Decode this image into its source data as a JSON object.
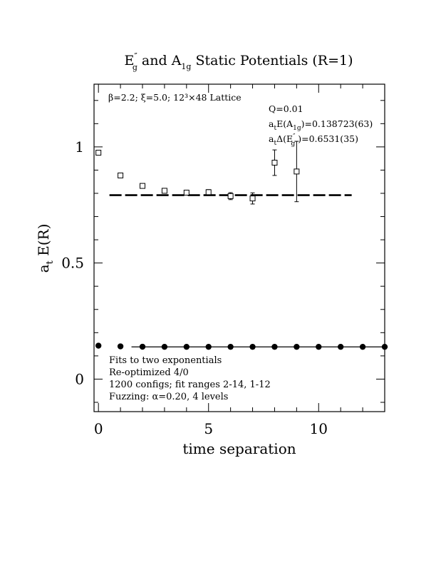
{
  "chart_data": {
    "type": "scatter",
    "title": {
      "main": "E",
      "main_sup": "″",
      "main_sub": "g",
      "mid": "  and A",
      "mid_sub": "1g",
      "rest": " Static Potentials (R=1)"
    },
    "xlabel": "time separation",
    "ylabel": {
      "prefix": "a",
      "prefix_sub": "t",
      "rest": " E(R)"
    },
    "xlim": [
      -0.2,
      13.0
    ],
    "ylim": [
      -0.14,
      1.27
    ],
    "xticks": [
      {
        "value": 0,
        "label": "0"
      },
      {
        "value": 5,
        "label": "5"
      },
      {
        "value": 10,
        "label": "10"
      }
    ],
    "yticks": [
      {
        "value": 0,
        "label": "0"
      },
      {
        "value": 0.5,
        "label": "0.5"
      },
      {
        "value": 1,
        "label": "1"
      }
    ],
    "x_minor_step": 1,
    "y_minor_step": 0.1,
    "grid": false,
    "series": [
      {
        "marker": "open-square",
        "points": [
          {
            "x": 0,
            "y": 0.975,
            "err": 0.006
          },
          {
            "x": 1,
            "y": 0.877,
            "err": 0.006
          },
          {
            "x": 2,
            "y": 0.832,
            "err": 0.006
          },
          {
            "x": 3,
            "y": 0.811,
            "err": 0.008
          },
          {
            "x": 4,
            "y": 0.803,
            "err": 0.009
          },
          {
            "x": 5,
            "y": 0.805,
            "err": 0.011
          },
          {
            "x": 6,
            "y": 0.788,
            "err": 0.015
          },
          {
            "x": 7,
            "y": 0.778,
            "err": 0.024
          },
          {
            "x": 8,
            "y": 0.932,
            "err": 0.055
          },
          {
            "x": 9,
            "y": 0.894,
            "err": 0.13
          }
        ]
      },
      {
        "marker": "filled-circle",
        "points": [
          {
            "x": 0,
            "y": 0.144,
            "err": 0.002
          },
          {
            "x": 1,
            "y": 0.141,
            "err": 0.002
          },
          {
            "x": 2,
            "y": 0.1395,
            "err": 0.002
          },
          {
            "x": 3,
            "y": 0.139,
            "err": 0.002
          },
          {
            "x": 4,
            "y": 0.139,
            "err": 0.002
          },
          {
            "x": 5,
            "y": 0.139,
            "err": 0.002
          },
          {
            "x": 6,
            "y": 0.139,
            "err": 0.002
          },
          {
            "x": 7,
            "y": 0.139,
            "err": 0.002
          },
          {
            "x": 8,
            "y": 0.139,
            "err": 0.002
          },
          {
            "x": 9,
            "y": 0.139,
            "err": 0.002
          },
          {
            "x": 10,
            "y": 0.139,
            "err": 0.002
          },
          {
            "x": 11,
            "y": 0.139,
            "err": 0.002
          },
          {
            "x": 12,
            "y": 0.139,
            "err": 0.002
          },
          {
            "x": 13,
            "y": 0.139,
            "err": 0.002
          }
        ]
      }
    ],
    "fits": [
      {
        "style": "dashed",
        "y": 0.792,
        "x_range": [
          0.5,
          11.5
        ]
      },
      {
        "style": "solid",
        "y": 0.1387,
        "x_range": [
          1.5,
          13.0
        ]
      }
    ],
    "annotations": {
      "lattice": "β=2.2; ξ=5.0; 12³×48 Lattice",
      "q": "Q=0.01",
      "ea1g_pre": "a",
      "ea1g_sub": "t",
      "ea1g_mid": "E(A",
      "ea1g_sub2": "1g",
      "ea1g_post": ")=0.138723(63)",
      "delta_pre": "a",
      "delta_sub": "t",
      "delta_mid": "Δ(E",
      "delta_sup": "″",
      "delta_sub2": "g",
      "delta_post": " )=0.6531(35)",
      "notes": [
        "Fits to two exponentials",
        "Re-optimized 4/0",
        "1200 configs; fit ranges 2-14, 1-12",
        "Fuzzing: α=0.20, 4 levels"
      ]
    }
  }
}
